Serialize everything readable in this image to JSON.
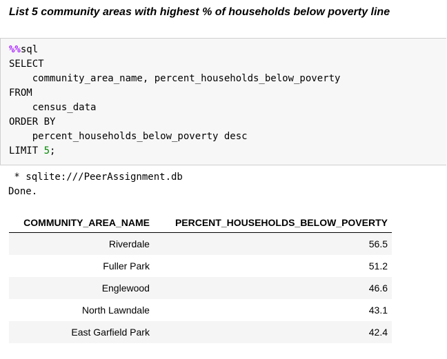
{
  "heading": "List 5 community areas with highest % of households below poverty line",
  "code": [
    [
      "%%",
      "sql"
    ],
    [
      "SELECT"
    ],
    [
      "    community_area_name, percent_households_below_poverty"
    ],
    [
      "FROM"
    ],
    [
      "    census_data"
    ],
    [
      "ORDER BY"
    ],
    [
      "    percent_households_below_poverty desc"
    ],
    [
      "LIMIT ",
      "5",
      ";"
    ]
  ],
  "output": [
    " * sqlite:///PeerAssignment.db",
    "Done."
  ],
  "table": {
    "columns": [
      "COMMUNITY_AREA_NAME",
      "PERCENT_HOUSEHOLDS_BELOW_POVERTY"
    ],
    "rows": [
      [
        "Riverdale",
        56.5
      ],
      [
        "Fuller Park",
        51.2
      ],
      [
        "Englewood",
        46.6
      ],
      [
        "North Lawndale",
        43.1
      ],
      [
        "East Garfield Park",
        42.4
      ]
    ]
  }
}
